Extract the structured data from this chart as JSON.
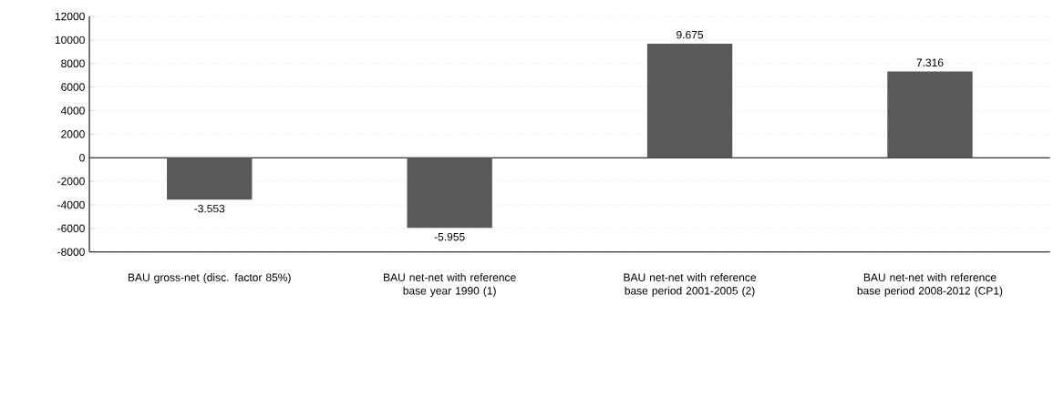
{
  "chart_data": {
    "type": "bar",
    "categories": [
      "BAU gross-net (disc. factor 85%)",
      "BAU net-net with reference base year 1990 (1)",
      "BAU net-net with reference base period 2001-2005 (2)",
      "BAU net-net with reference base period 2008-2012 (CP1)"
    ],
    "values": [
      -3553,
      -5955,
      9675,
      7316
    ],
    "value_labels": [
      "-3.553",
      "-5.955",
      "9.675",
      "7.316"
    ],
    "color": "#595959",
    "ylim": [
      -8000,
      12000
    ],
    "yticks": [
      -8000,
      -6000,
      -4000,
      -2000,
      0,
      2000,
      4000,
      6000,
      8000,
      10000,
      12000
    ],
    "grid": "y"
  }
}
